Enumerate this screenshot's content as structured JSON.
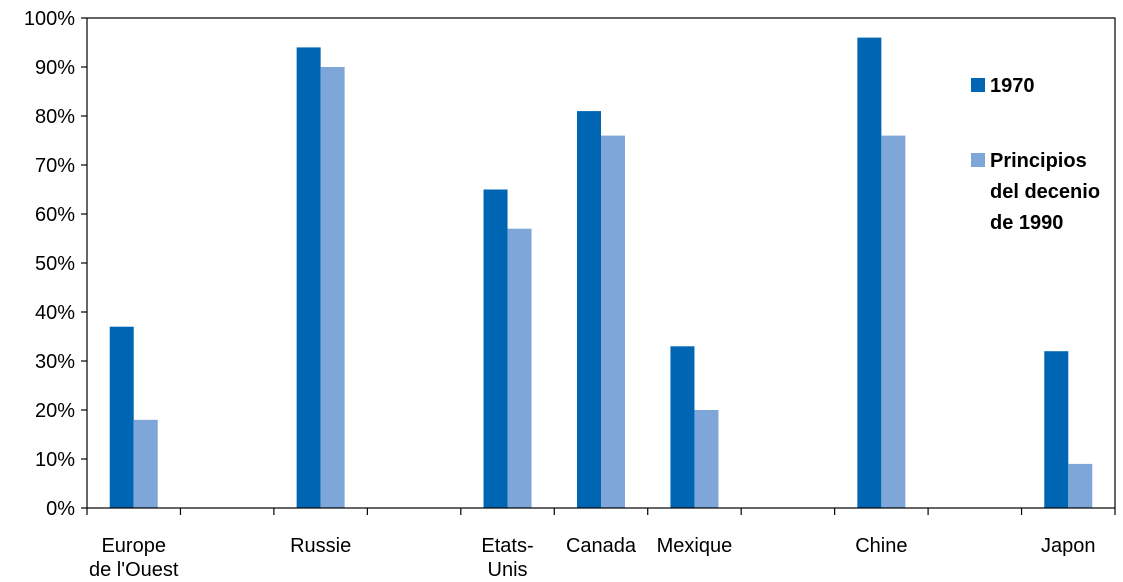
{
  "chart_data": {
    "type": "bar",
    "categories": [
      [
        "Europe",
        "de l'Ouest"
      ],
      [
        "Russie"
      ],
      [
        "Etats-",
        "Unis"
      ],
      [
        "Canada"
      ],
      [
        "Mexique"
      ],
      [
        "Chine"
      ],
      [
        "Japon"
      ]
    ],
    "series": [
      {
        "name": "1970",
        "color": "#0066b3",
        "values": [
          37,
          94,
          65,
          81,
          33,
          96,
          32
        ]
      },
      {
        "name": [
          "Principios",
          "del decenio",
          "de 1990"
        ],
        "color": "#7fa6d9",
        "values": [
          18,
          90,
          57,
          76,
          20,
          76,
          9
        ]
      }
    ],
    "ylim": [
      0,
      100
    ],
    "yticks": [
      "0%",
      "10%",
      "20%",
      "30%",
      "40%",
      "50%",
      "60%",
      "70%",
      "80%",
      "90%",
      "100%"
    ],
    "grid": false,
    "legend_position": "right"
  }
}
